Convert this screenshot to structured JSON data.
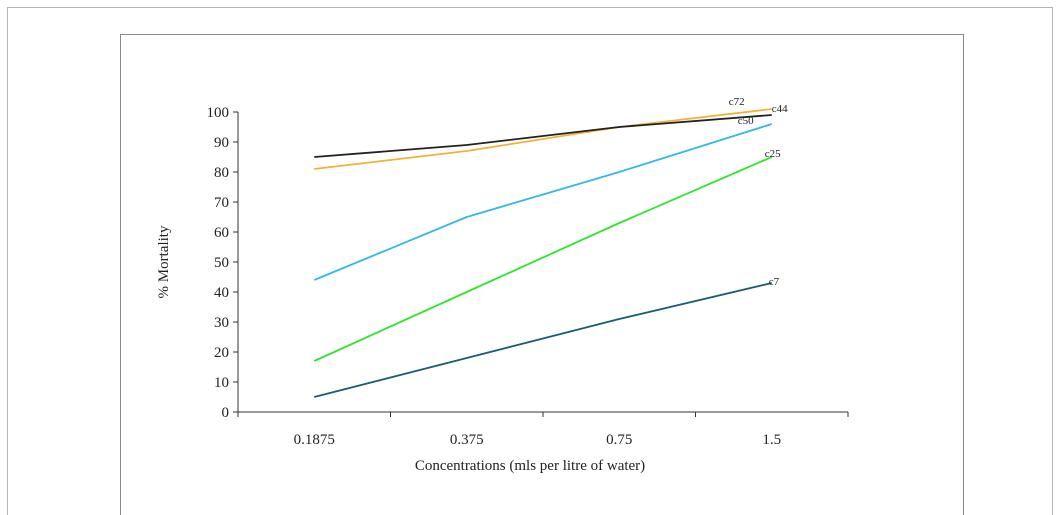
{
  "chart_data": {
    "type": "line",
    "title": "",
    "xlabel": "Concentrations (mls per litre of water)",
    "ylabel": "% Mortality",
    "categories": [
      "0.1875",
      "0.375",
      "0.75",
      "1.5"
    ],
    "ylim": [
      0,
      100
    ],
    "yticks": [
      "0",
      "10",
      "20",
      "30",
      "40",
      "50",
      "60",
      "70",
      "80",
      "90",
      "100"
    ],
    "grid": false,
    "legend": "none",
    "series": [
      {
        "name": "c72",
        "color": "#f2b233",
        "values": [
          81,
          87,
          95,
          101
        ]
      },
      {
        "name": "c44",
        "color": "#222222",
        "values": [
          85,
          89,
          95,
          99
        ]
      },
      {
        "name": "c50",
        "color": "#33b8e6",
        "values": [
          44,
          65,
          80,
          96
        ]
      },
      {
        "name": "c25",
        "color": "#2ee62e",
        "values": [
          17,
          40,
          63,
          85
        ]
      },
      {
        "name": "c7",
        "color": "#1a5c73",
        "values": [
          5,
          18,
          31,
          43
        ]
      }
    ]
  }
}
